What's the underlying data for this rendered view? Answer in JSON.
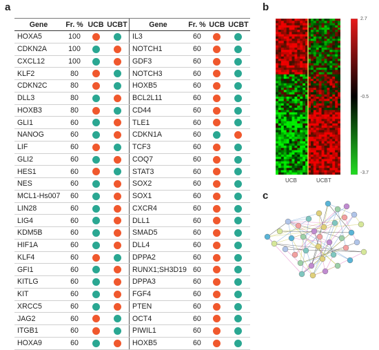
{
  "panels": {
    "a": "a",
    "b": "b",
    "c": "c"
  },
  "table": {
    "headers": {
      "gene": "Gene",
      "freq": "Fr. %",
      "ucb": "UCB",
      "ucbt": "UCBT"
    },
    "colors": {
      "red": "#f0582d",
      "teal": "#2aa792"
    },
    "left": [
      {
        "gene": "HOXA5",
        "fr": "100",
        "ucb": "red",
        "ucbt": "teal"
      },
      {
        "gene": "CDKN2A",
        "fr": "100",
        "ucb": "teal",
        "ucbt": "red"
      },
      {
        "gene": "CXCL12",
        "fr": "100",
        "ucb": "teal",
        "ucbt": "red"
      },
      {
        "gene": "KLF2",
        "fr": "80",
        "ucb": "red",
        "ucbt": "teal"
      },
      {
        "gene": "CDKN2C",
        "fr": "80",
        "ucb": "red",
        "ucbt": "teal"
      },
      {
        "gene": "DLL3",
        "fr": "80",
        "ucb": "teal",
        "ucbt": "red"
      },
      {
        "gene": "HOXB3",
        "fr": "80",
        "ucb": "red",
        "ucbt": "teal"
      },
      {
        "gene": "GLI1",
        "fr": "60",
        "ucb": "teal",
        "ucbt": "red"
      },
      {
        "gene": "NANOG",
        "fr": "60",
        "ucb": "teal",
        "ucbt": "red"
      },
      {
        "gene": "LIF",
        "fr": "60",
        "ucb": "red",
        "ucbt": "teal"
      },
      {
        "gene": "GLI2",
        "fr": "60",
        "ucb": "teal",
        "ucbt": "red"
      },
      {
        "gene": "HES1",
        "fr": "60",
        "ucb": "red",
        "ucbt": "teal"
      },
      {
        "gene": "NES",
        "fr": "60",
        "ucb": "teal",
        "ucbt": "red"
      },
      {
        "gene": "MCL1-Hs007",
        "fr": "60",
        "ucb": "teal",
        "ucbt": "red"
      },
      {
        "gene": "LIN28",
        "fr": "60",
        "ucb": "teal",
        "ucbt": "red"
      },
      {
        "gene": "LIG4",
        "fr": "60",
        "ucb": "teal",
        "ucbt": "red"
      },
      {
        "gene": "KDM5B",
        "fr": "60",
        "ucb": "teal",
        "ucbt": "red"
      },
      {
        "gene": "HIF1A",
        "fr": "60",
        "ucb": "teal",
        "ucbt": "red"
      },
      {
        "gene": "KLF4",
        "fr": "60",
        "ucb": "red",
        "ucbt": "teal"
      },
      {
        "gene": "GFI1",
        "fr": "60",
        "ucb": "teal",
        "ucbt": "red"
      },
      {
        "gene": "KITLG",
        "fr": "60",
        "ucb": "teal",
        "ucbt": "red"
      },
      {
        "gene": "KIT",
        "fr": "60",
        "ucb": "teal",
        "ucbt": "red"
      },
      {
        "gene": "XRCC5",
        "fr": "60",
        "ucb": "teal",
        "ucbt": "red"
      },
      {
        "gene": "JAG2",
        "fr": "60",
        "ucb": "red",
        "ucbt": "teal"
      },
      {
        "gene": "ITGB1",
        "fr": "60",
        "ucb": "red",
        "ucbt": "teal"
      },
      {
        "gene": "HOXA9",
        "fr": "60",
        "ucb": "teal",
        "ucbt": "red"
      }
    ],
    "right": [
      {
        "gene": "IL3",
        "fr": "60",
        "ucb": "red",
        "ucbt": "teal"
      },
      {
        "gene": "NOTCH1",
        "fr": "60",
        "ucb": "red",
        "ucbt": "teal"
      },
      {
        "gene": "GDF3",
        "fr": "60",
        "ucb": "red",
        "ucbt": "teal"
      },
      {
        "gene": "NOTCH3",
        "fr": "60",
        "ucb": "red",
        "ucbt": "teal"
      },
      {
        "gene": "HOXB5",
        "fr": "60",
        "ucb": "red",
        "ucbt": "teal"
      },
      {
        "gene": "BCL2L11",
        "fr": "60",
        "ucb": "red",
        "ucbt": "teal"
      },
      {
        "gene": "CD44",
        "fr": "60",
        "ucb": "red",
        "ucbt": "teal"
      },
      {
        "gene": "TLE1",
        "fr": "60",
        "ucb": "red",
        "ucbt": "teal"
      },
      {
        "gene": "CDKN1A",
        "fr": "60",
        "ucb": "teal",
        "ucbt": "red"
      },
      {
        "gene": "TCF3",
        "fr": "60",
        "ucb": "red",
        "ucbt": "teal"
      },
      {
        "gene": "COQ7",
        "fr": "60",
        "ucb": "red",
        "ucbt": "teal"
      },
      {
        "gene": "STAT3",
        "fr": "60",
        "ucb": "red",
        "ucbt": "teal"
      },
      {
        "gene": "SOX2",
        "fr": "60",
        "ucb": "red",
        "ucbt": "teal"
      },
      {
        "gene": "SOX1",
        "fr": "60",
        "ucb": "red",
        "ucbt": "teal"
      },
      {
        "gene": "CXCR4",
        "fr": "60",
        "ucb": "red",
        "ucbt": "teal"
      },
      {
        "gene": "DLL1",
        "fr": "60",
        "ucb": "red",
        "ucbt": "teal"
      },
      {
        "gene": "SMAD5",
        "fr": "60",
        "ucb": "red",
        "ucbt": "teal"
      },
      {
        "gene": "DLL4",
        "fr": "60",
        "ucb": "red",
        "ucbt": "teal"
      },
      {
        "gene": "DPPA2",
        "fr": "60",
        "ucb": "red",
        "ucbt": "teal"
      },
      {
        "gene": "RUNX1;SH3D19",
        "fr": "60",
        "ucb": "red",
        "ucbt": "teal"
      },
      {
        "gene": "DPPA3",
        "fr": "60",
        "ucb": "red",
        "ucbt": "teal"
      },
      {
        "gene": "FGF4",
        "fr": "60",
        "ucb": "red",
        "ucbt": "teal"
      },
      {
        "gene": "PTEN",
        "fr": "60",
        "ucb": "red",
        "ucbt": "teal"
      },
      {
        "gene": "OCT4",
        "fr": "60",
        "ucb": "red",
        "ucbt": "teal"
      },
      {
        "gene": "PIWIL1",
        "fr": "60",
        "ucb": "red",
        "ucbt": "teal"
      },
      {
        "gene": "HOXB5",
        "fr": "60",
        "ucb": "red",
        "ucbt": "teal"
      }
    ]
  },
  "heatmap": {
    "group_labels": [
      "UCB",
      "UCBT"
    ],
    "scale_labels": [
      "2.7",
      "-0.5",
      "-3.7"
    ],
    "scale_colors": [
      "#e81b1b",
      "#000000",
      "#22dd22"
    ]
  },
  "network": {
    "node_colors": [
      "#5ab4d6",
      "#9dd0a8",
      "#c08bd0",
      "#e0d07a",
      "#7fc7c0",
      "#f2a0a0",
      "#b0c4e8",
      "#d6e79a"
    ],
    "edge_colors": [
      "#e377c2",
      "#6c9bd2",
      "#c8c84f",
      "#444444"
    ]
  }
}
